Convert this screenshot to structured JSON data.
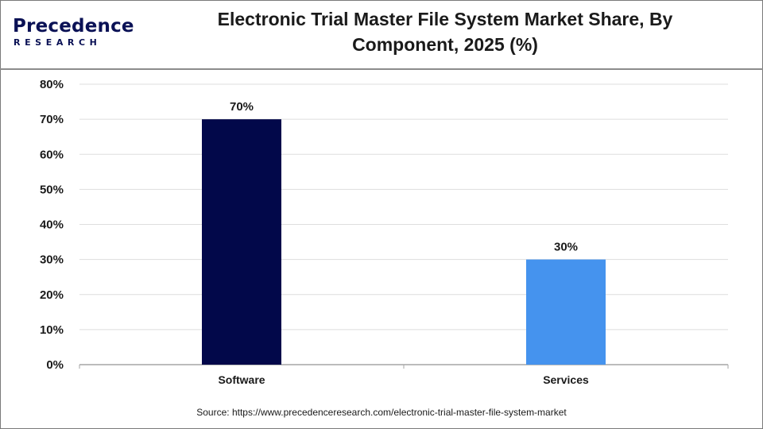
{
  "brand": {
    "word": "Precedence",
    "sub": "RESEARCH",
    "color": "#0a1155"
  },
  "header": {
    "title_line1": "Electronic Trial Master File System Market Share, By",
    "title_line2": "Component, 2025 (%)"
  },
  "chart_data": {
    "type": "bar",
    "title": "Electronic Trial Master File System Market Share, By Component, 2025 (%)",
    "categories": [
      "Software",
      "Services"
    ],
    "values": [
      70,
      30
    ],
    "data_labels": [
      "70%",
      "30%"
    ],
    "colors": [
      "#02084a",
      "#4593ee"
    ],
    "ylim": [
      0,
      80
    ],
    "yticks": [
      "0%",
      "10%",
      "20%",
      "30%",
      "40%",
      "50%",
      "60%",
      "70%",
      "80%"
    ],
    "xlabel": "",
    "ylabel": "",
    "grid": true,
    "legend": "none"
  },
  "footer": {
    "source": "Source: https://www.precedenceresearch.com/electronic-trial-master-file-system-market"
  }
}
